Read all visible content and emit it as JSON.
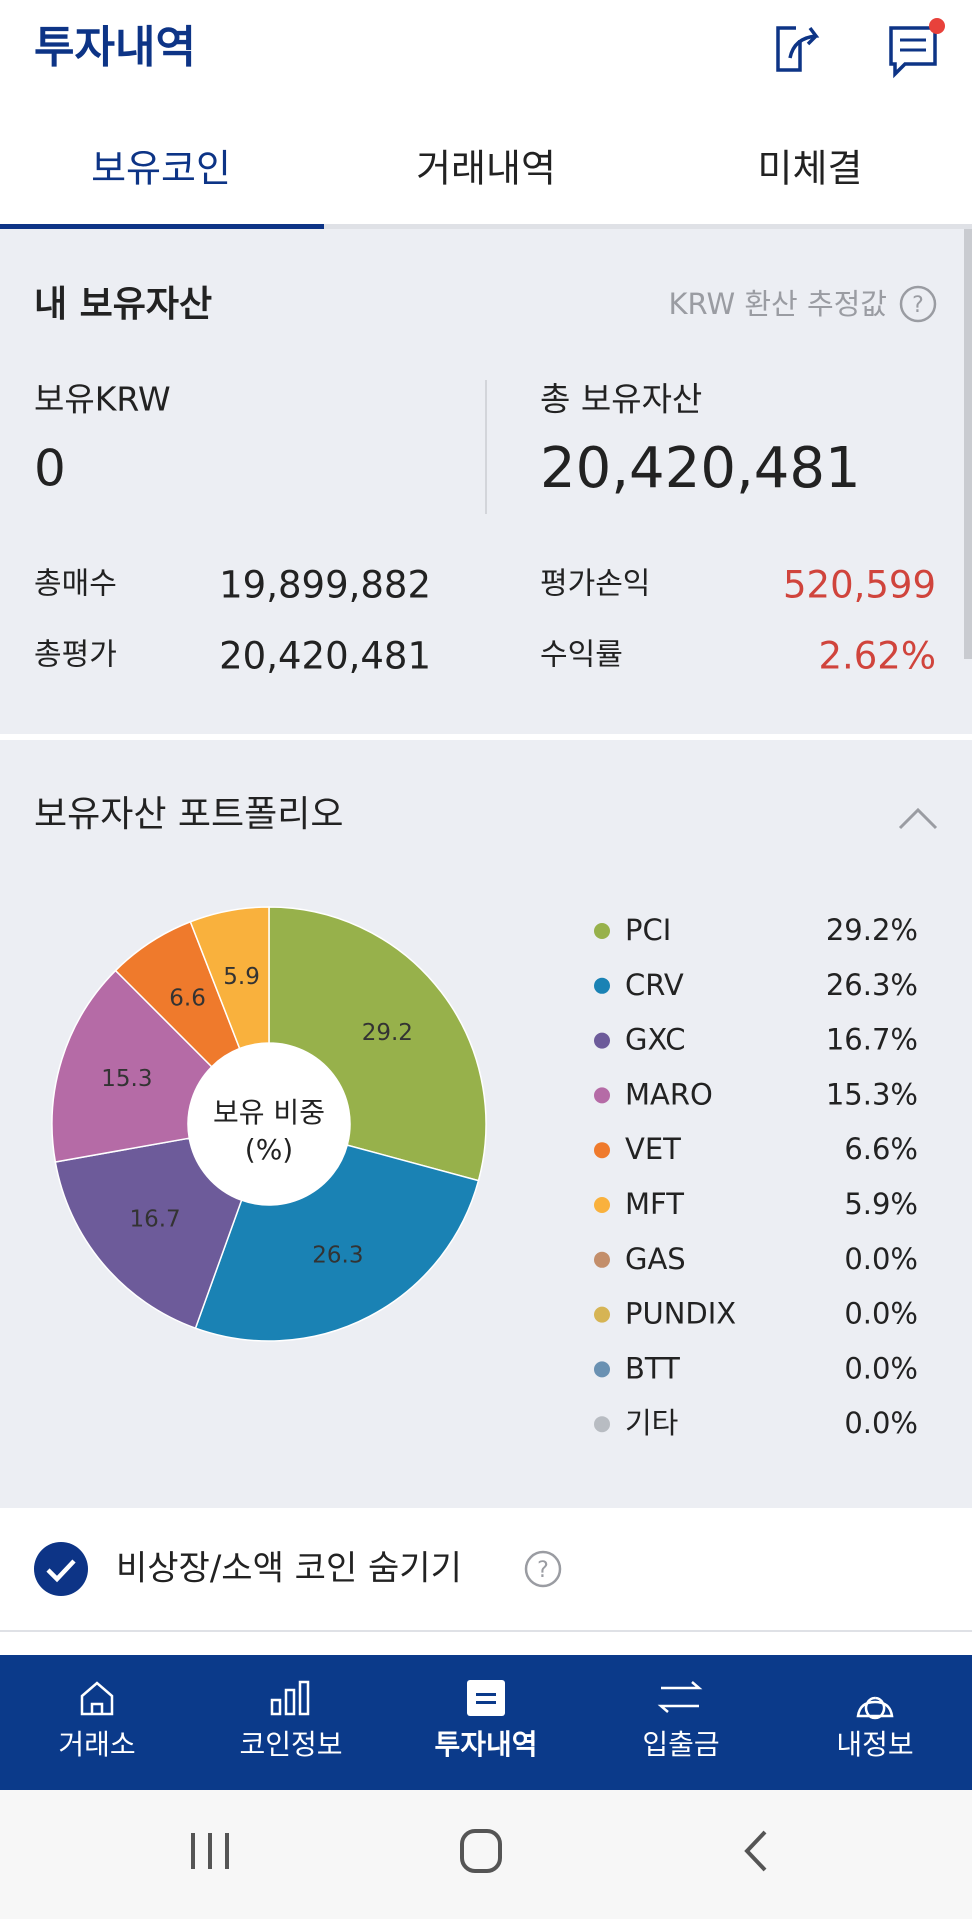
{
  "header": {
    "title": "투자내역"
  },
  "tabs": [
    "보유코인",
    "거래내역",
    "미체결"
  ],
  "summary": {
    "title": "내 보유자산",
    "note": "KRW 환산 추정값",
    "krw_label": "보유KRW",
    "krw_value": "0",
    "total_label": "총 보유자산",
    "total_value": "20,420,481",
    "rows": [
      [
        "총매수",
        "19,899,882"
      ],
      [
        "평가손익",
        "520,599"
      ],
      [
        "총평가",
        "20,420,481"
      ],
      [
        "수익률",
        "2.62%"
      ]
    ]
  },
  "chart_data": {
    "type": "pie",
    "title": "보유자산 포트폴리오",
    "center_label": [
      "보유 비중",
      "(%)"
    ],
    "categories": [
      "PCI",
      "CRV",
      "GXC",
      "MARO",
      "VET",
      "MFT",
      "GAS",
      "PUNDIX",
      "BTT",
      "기타"
    ],
    "values": [
      29.2,
      26.3,
      16.7,
      15.3,
      6.6,
      5.9,
      0,
      0,
      0,
      0
    ],
    "value_labels": [
      "29.2%",
      "26.3%",
      "16.7%",
      "15.3%",
      "6.6%",
      "5.9%",
      "0.0%",
      "0.0%",
      "0.0%",
      "0.0%"
    ],
    "colors": [
      "#97b14b",
      "#1a82b4",
      "#6d5b9a",
      "#b56ba6",
      "#ef7a2c",
      "#f9b13d",
      "#c38e6a",
      "#d6b454",
      "#6a91b2",
      "#b8bcc2"
    ]
  },
  "options": {
    "hide_label": "비상장/소액 코인 숨기기"
  },
  "nav": [
    "거래소",
    "코인정보",
    "투자내역",
    "입출금",
    "내정보"
  ]
}
